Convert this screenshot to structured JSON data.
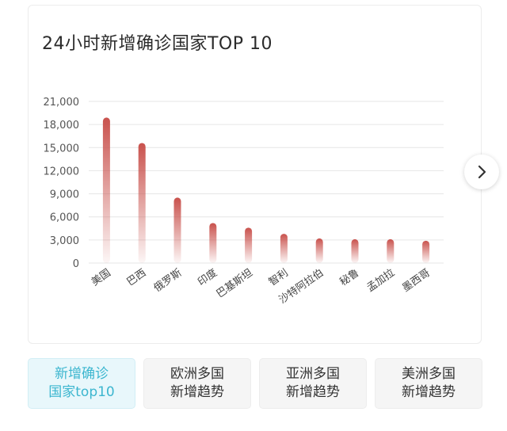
{
  "chart_data": {
    "type": "bar",
    "title": "24小时新增确诊国家TOP 10",
    "categories": [
      "美国",
      "巴西",
      "俄罗斯",
      "印度",
      "巴基斯坦",
      "智利",
      "沙特阿拉伯",
      "秘鲁",
      "孟加拉",
      "墨西哥"
    ],
    "values": [
      18900,
      15600,
      8500,
      5200,
      4600,
      3800,
      3200,
      3100,
      3100,
      2900
    ],
    "ylim": [
      0,
      21000
    ],
    "yticks": [
      0,
      3000,
      6000,
      9000,
      12000,
      15000,
      18000,
      21000
    ],
    "ytick_labels": [
      "0",
      "3,000",
      "6,000",
      "9,000",
      "12,000",
      "15,000",
      "18,000",
      "21,000"
    ],
    "grid": true,
    "bar_color": "#c9524d"
  },
  "nav": {
    "next_icon": "chevron-right-icon"
  },
  "tabs": [
    {
      "line1": "新增确诊",
      "line2": "国家top10",
      "active": true
    },
    {
      "line1": "欧洲多国",
      "line2": "新增趋势",
      "active": false
    },
    {
      "line1": "亚洲多国",
      "line2": "新增趋势",
      "active": false
    },
    {
      "line1": "美洲多国",
      "line2": "新增趋势",
      "active": false
    }
  ]
}
